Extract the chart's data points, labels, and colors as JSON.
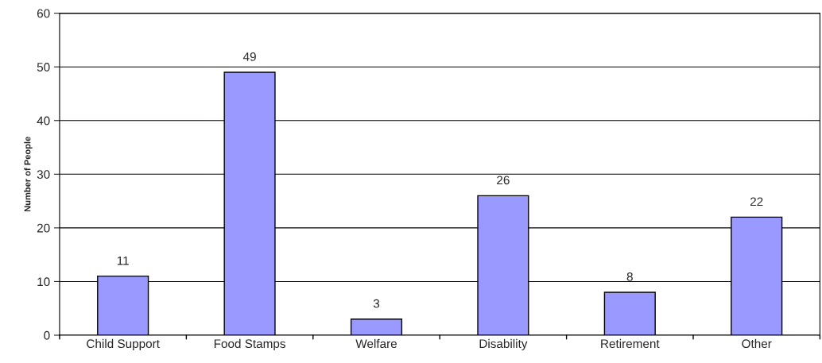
{
  "chart_data": {
    "type": "bar",
    "ylabel": "Number of People",
    "categories": [
      "Child Support",
      "Food Stamps",
      "Welfare",
      "Disability",
      "Retirement",
      "Other"
    ],
    "values": [
      11,
      49,
      3,
      26,
      8,
      22
    ],
    "color": "#9999ff",
    "ylim": [
      0,
      60
    ],
    "yticks": [
      0,
      10,
      20,
      30,
      40,
      50,
      60
    ],
    "grid": "y",
    "data_labels": true
  }
}
